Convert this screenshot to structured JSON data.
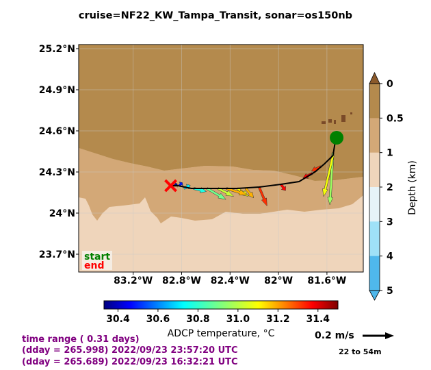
{
  "title": "cruise=NF22_KW_Tampa_Transit,   sonar=os150nb",
  "chart_data": {
    "type": "vector-map",
    "lon_ticks": [
      -83.2,
      -82.8,
      -82.4,
      -82.0,
      -81.6
    ],
    "lon_labels": [
      "83.2°W",
      "82.8°W",
      "82.4°W",
      "82°W",
      "81.6°W"
    ],
    "lat_ticks": [
      25.2,
      24.9,
      24.6,
      24.3,
      24.0,
      23.7
    ],
    "lat_labels": [
      "25.2°N",
      "24.9°N",
      "24.6°N",
      "24.3°N",
      "24°N",
      "23.7°N"
    ],
    "lon_range": [
      -83.65,
      -81.3
    ],
    "lat_range": [
      23.57,
      25.23
    ],
    "grid": true,
    "start_marker": {
      "lon": -81.52,
      "lat": 24.55,
      "color": "#008000"
    },
    "end_marker": {
      "lon": -82.89,
      "lat": 24.2,
      "color": "#ff0000"
    },
    "track": [
      [
        -81.53,
        24.53
      ],
      [
        -81.55,
        24.42
      ],
      [
        -81.62,
        24.36
      ],
      [
        -81.7,
        24.3
      ],
      [
        -81.83,
        24.23
      ],
      [
        -81.98,
        24.21
      ],
      [
        -82.16,
        24.19
      ],
      [
        -82.34,
        24.18
      ],
      [
        -82.52,
        24.18
      ],
      [
        -82.72,
        24.18
      ],
      [
        -82.83,
        24.2
      ],
      [
        -82.89,
        24.2
      ]
    ],
    "vectors": [
      {
        "lon": -81.55,
        "lat": 24.44,
        "u": -0.02,
        "v": -0.33,
        "temp": 30.95
      },
      {
        "lon": -81.55,
        "lat": 24.42,
        "u": -0.06,
        "v": -0.26,
        "temp": 31.05
      },
      {
        "lon": -81.65,
        "lat": 24.34,
        "u": -0.06,
        "v": -0.03,
        "temp": 31.3
      },
      {
        "lon": -81.72,
        "lat": 24.29,
        "u": -0.06,
        "v": -0.03,
        "temp": 31.35
      },
      {
        "lon": -81.98,
        "lat": 24.21,
        "u": 0.03,
        "v": -0.04,
        "temp": 31.35
      },
      {
        "lon": -82.16,
        "lat": 24.19,
        "u": 0.05,
        "v": -0.12,
        "temp": 31.3
      },
      {
        "lon": -82.27,
        "lat": 24.18,
        "u": 0.05,
        "v": -0.06,
        "temp": 31.15
      },
      {
        "lon": -82.34,
        "lat": 24.18,
        "u": 0.07,
        "v": -0.05,
        "temp": 31.05
      },
      {
        "lon": -82.43,
        "lat": 24.18,
        "u": 0.13,
        "v": -0.04,
        "temp": 31.15
      },
      {
        "lon": -82.5,
        "lat": 24.18,
        "u": 0.1,
        "v": -0.05,
        "temp": 31.0
      },
      {
        "lon": -82.59,
        "lat": 24.18,
        "u": 0.12,
        "v": -0.07,
        "temp": 30.9
      },
      {
        "lon": -82.7,
        "lat": 24.18,
        "u": 0.08,
        "v": -0.02,
        "temp": 30.8
      },
      {
        "lon": -82.78,
        "lat": 24.18,
        "u": 0.04,
        "v": 0.02,
        "temp": 30.75
      },
      {
        "lon": -82.82,
        "lat": 24.2,
        "u": 0.02,
        "v": 0.02,
        "temp": 30.5
      },
      {
        "lon": -82.86,
        "lat": 24.2,
        "u": 0.02,
        "v": 0.01,
        "temp": 30.35
      }
    ],
    "depth_colorbar": {
      "label": "Depth (km)",
      "ticks": [
        0,
        0.5,
        1,
        2,
        3,
        4,
        5
      ],
      "tick_labels": [
        "0",
        "0.5",
        "1",
        "2",
        "3",
        "4",
        "5"
      ],
      "colors": [
        "#b48a4d",
        "#d3a877",
        "#efd5bb",
        "#e6f3f8",
        "#9fe1f7",
        "#4fb8ec"
      ]
    },
    "temp_colorbar": {
      "label": "ADCP temperature, °C",
      "range": [
        30.33,
        31.5
      ],
      "ticks": [
        30.4,
        30.6,
        30.8,
        31.0,
        31.2,
        31.4
      ],
      "tick_labels": [
        "30.4",
        "30.6",
        "30.8",
        "31.0",
        "31.2",
        "31.4"
      ]
    },
    "scale": {
      "label": "0.2 m/s",
      "speed": 0.2,
      "depth_label": "22 to 54m"
    },
    "legend": {
      "start_label": "start",
      "end_label": "end",
      "placement": "bottom-left"
    }
  },
  "time_info": {
    "line1": "time range ( 0.31 days)",
    "line2": "(dday = 265.998) 2022/09/23 23:57:20 UTC",
    "line3": "(dday = 265.689) 2022/09/23 16:32:21 UTC",
    "color": "#800080"
  }
}
